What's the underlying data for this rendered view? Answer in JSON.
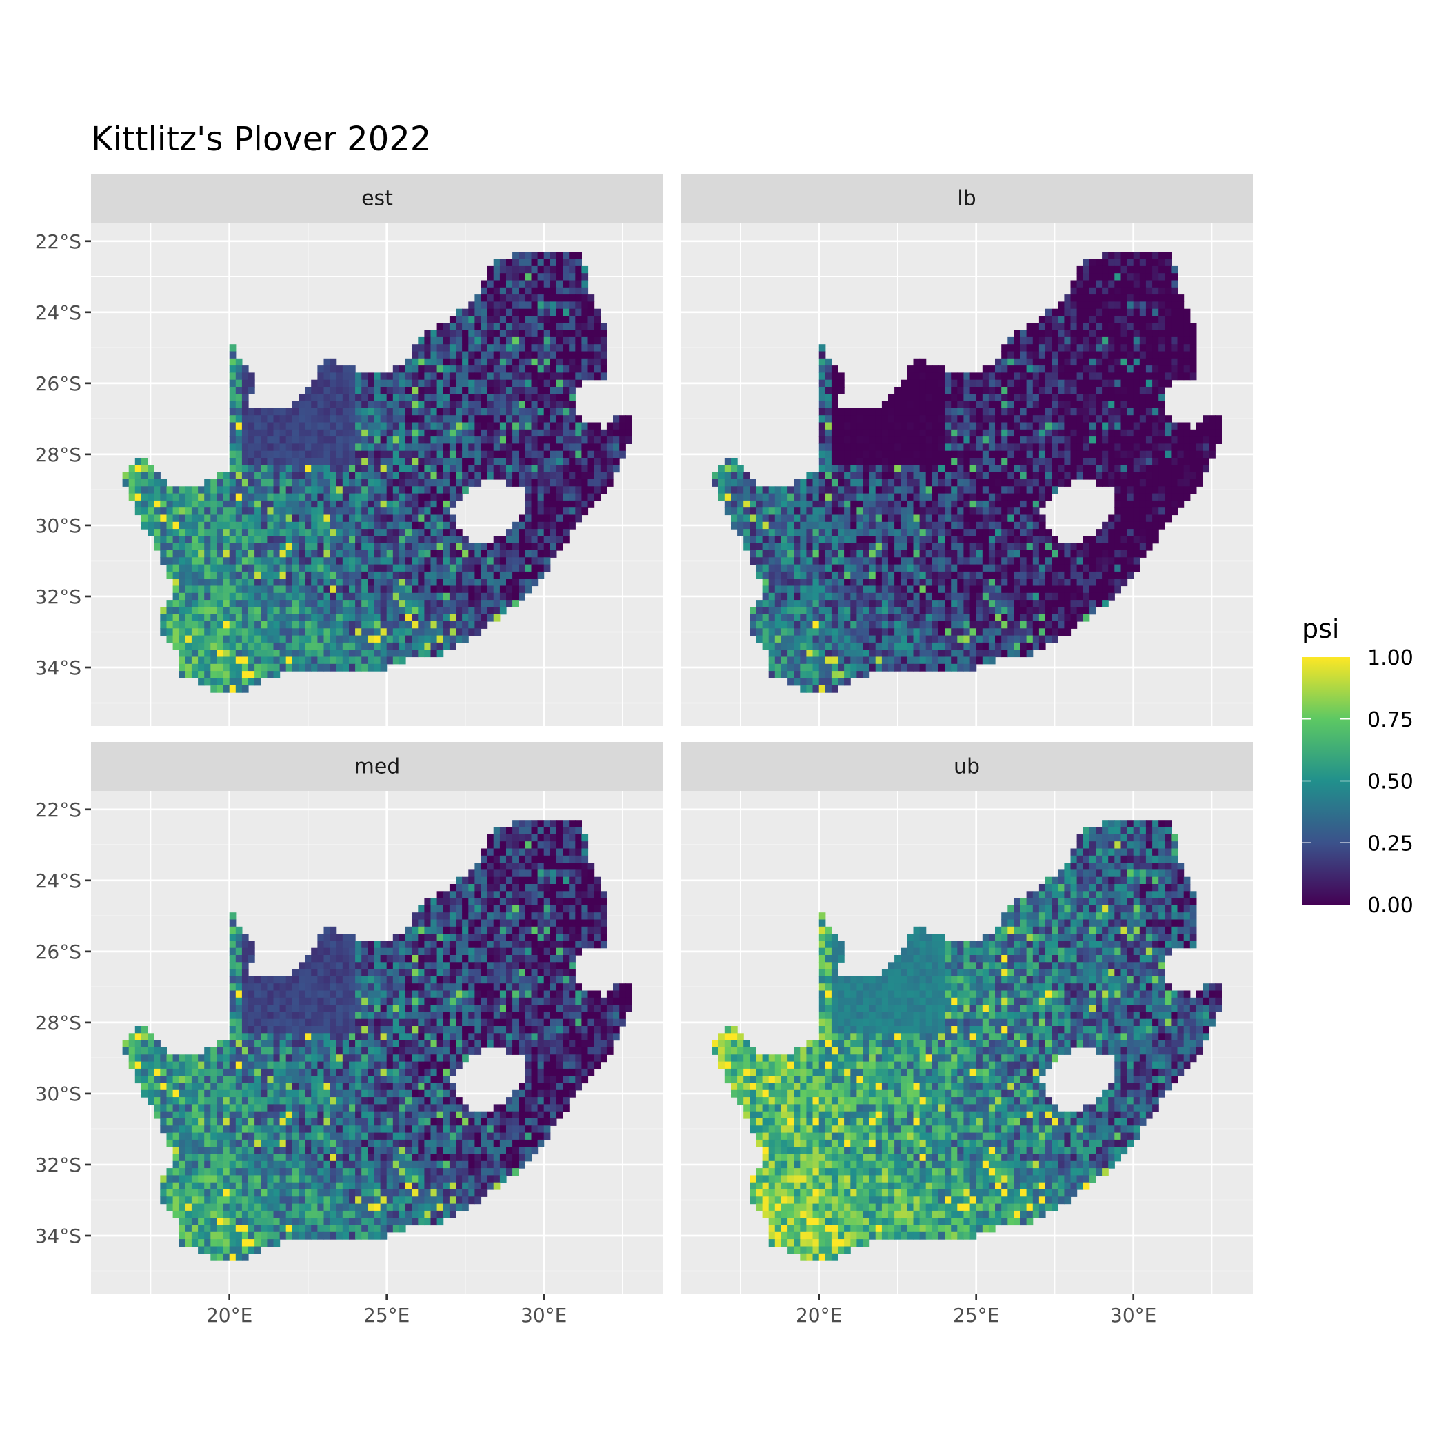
{
  "chart_data": {
    "type": "heatmap",
    "title": "Kittlitz's Plover 2022",
    "xlabel": "",
    "ylabel": "",
    "facets": [
      "est",
      "lb",
      "med",
      "ub"
    ],
    "facet_layout": "2x2",
    "x_ticks": [
      {
        "value": 20,
        "label": "20°E"
      },
      {
        "value": 25,
        "label": "25°E"
      },
      {
        "value": 30,
        "label": "30°E"
      }
    ],
    "y_ticks": [
      {
        "value": -22,
        "label": "22°S"
      },
      {
        "value": -24,
        "label": "24°S"
      },
      {
        "value": -26,
        "label": "26°S"
      },
      {
        "value": -28,
        "label": "28°S"
      },
      {
        "value": -30,
        "label": "30°S"
      },
      {
        "value": -32,
        "label": "32°S"
      },
      {
        "value": -34,
        "label": "34°S"
      }
    ],
    "xlim": [
      15.6,
      33.8
    ],
    "ylim": [
      -35.65,
      -21.48
    ],
    "grid": true,
    "fill_scale": {
      "name": "psi",
      "palette": "viridis",
      "limits": [
        0,
        1
      ],
      "breaks": [
        "0.00",
        "0.25",
        "0.50",
        "0.75",
        "1.00"
      ],
      "colors": [
        "#440154",
        "#3b528b",
        "#21908c",
        "#5dc863",
        "#fde725"
      ]
    },
    "legend_position": "right",
    "panel_background": "#ebebeb",
    "strip_background": "#d9d9d9"
  }
}
